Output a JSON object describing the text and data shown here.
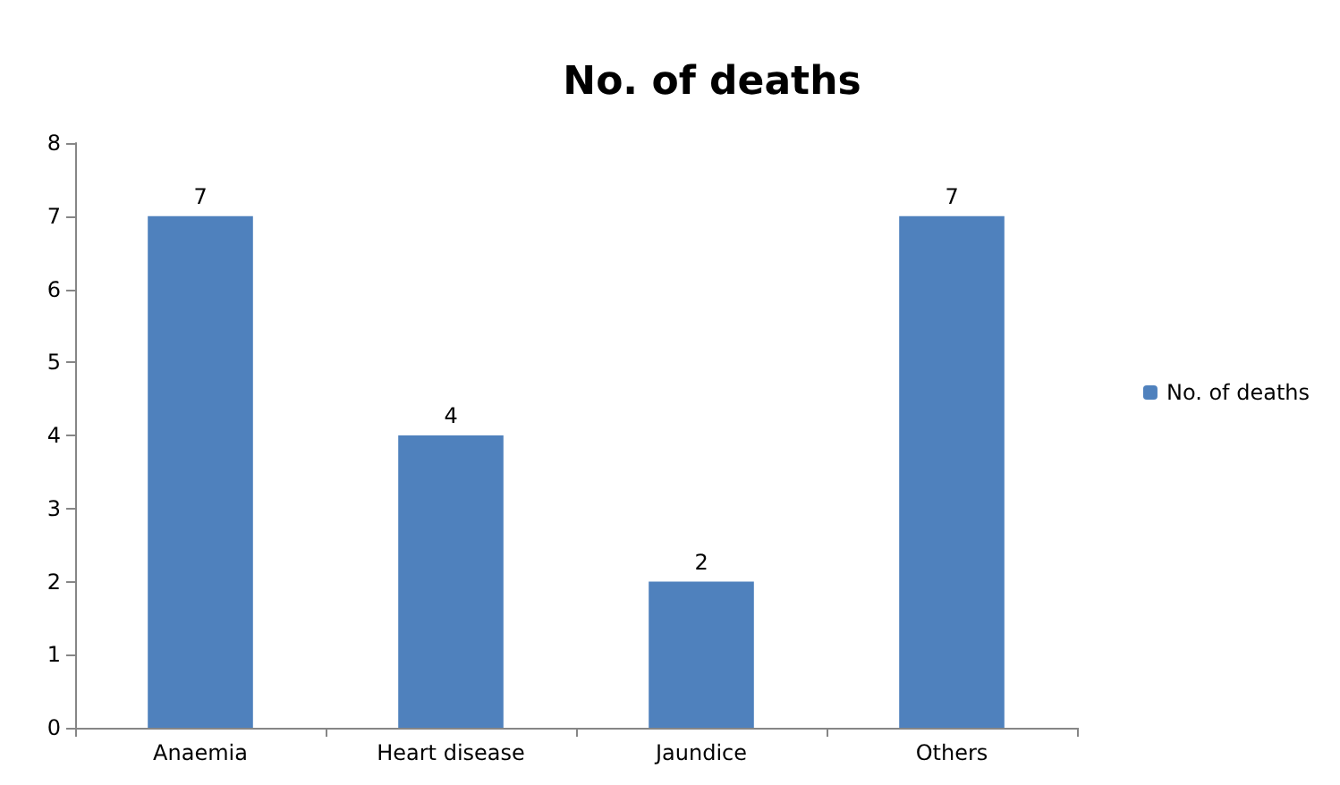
{
  "chart_data": {
    "type": "bar",
    "title": "No. of deaths",
    "categories": [
      "Anaemia",
      "Heart disease",
      "Jaundice",
      "Others"
    ],
    "series": [
      {
        "name": "No. of deaths",
        "color": "#4f81bd",
        "values": [
          7,
          4,
          2,
          7
        ]
      }
    ],
    "ylim": [
      0,
      8
    ],
    "yticks": [
      0,
      1,
      2,
      3,
      4,
      5,
      6,
      7,
      8
    ],
    "grid": false,
    "legend": "right",
    "data_labels": true
  }
}
